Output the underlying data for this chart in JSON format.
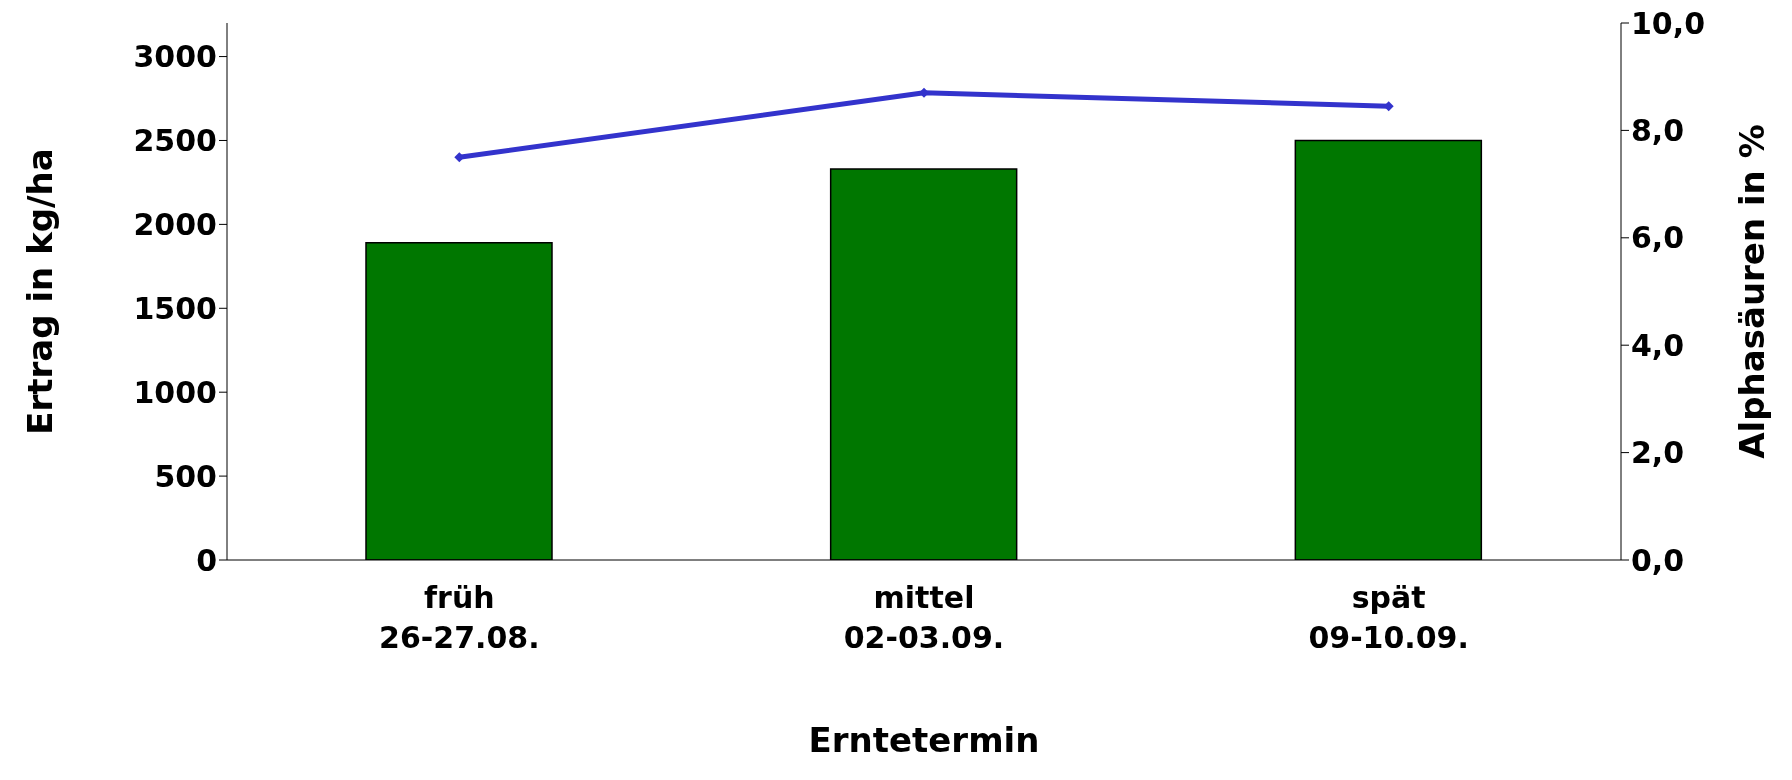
{
  "chart_data": {
    "type": "bar",
    "xlabel": "Erntetermin",
    "ylabel": "Ertrag in kg/ha",
    "y2label": "Alphasäuren in %",
    "categories": [
      "früh\n26-27.08.",
      "mittel\n02-03.09.",
      "spät\n09-10.09."
    ],
    "series": [
      {
        "color": "#007700",
        "values": [
          1890,
          2330,
          2500
        ]
      },
      {
        "type": "line",
        "axis": "y2",
        "color": "#3333cc",
        "values": [
          7.5,
          8.7,
          8.45
        ],
        "marker": "diamond"
      }
    ],
    "ylim": [
      0,
      3200
    ],
    "yticks": [
      0,
      500,
      1000,
      1500,
      2000,
      2500,
      3000
    ],
    "y2lim": [
      0,
      10
    ],
    "y2ticks": [
      {
        "value": 0,
        "label": "0,0"
      },
      {
        "value": 2,
        "label": "2,0"
      },
      {
        "value": 4,
        "label": "4,0"
      },
      {
        "value": 6,
        "label": "6,0"
      },
      {
        "value": 8,
        "label": "8,0"
      },
      {
        "value": 10,
        "label": "10,0"
      }
    ],
    "grid": false,
    "legend": false
  }
}
